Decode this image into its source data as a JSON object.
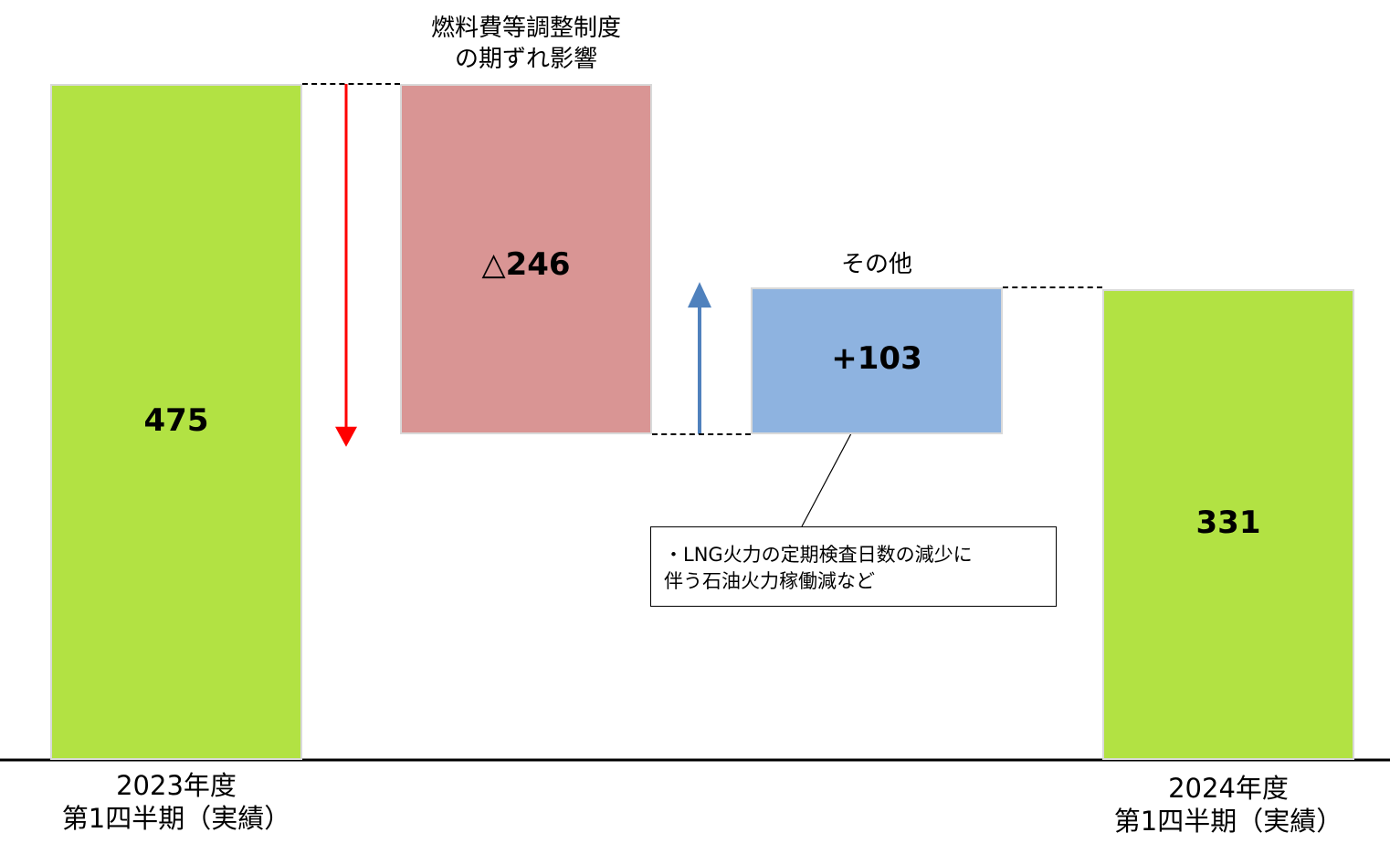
{
  "chart_data": {
    "type": "waterfall",
    "title": "",
    "xlabel": "",
    "ylabel": "",
    "ylim": [
      0,
      475
    ],
    "categories": [
      [
        "2023年度",
        "第1四半期（実績）"
      ],
      [
        "燃料費等調整制度",
        "の期ずれ影響"
      ],
      [
        "その他"
      ],
      [
        "2024年度",
        "第1四半期（実績）"
      ]
    ],
    "values": [
      475,
      -246,
      103,
      331
    ],
    "value_labels": [
      "475",
      "△246",
      "+103",
      "331"
    ],
    "kinds": [
      "total",
      "decrease",
      "increase",
      "total"
    ],
    "colors": {
      "total": "#b2e243",
      "decrease": "#d99594",
      "increase": "#8eb3e0",
      "arrow_down": "#ff0000",
      "arrow_up": "#4f81bd"
    },
    "annotation": {
      "target_index": 2,
      "lines": [
        "・LNG火力の定期検査日数の減少に",
        "伴う石油火力稼働減など"
      ]
    }
  }
}
